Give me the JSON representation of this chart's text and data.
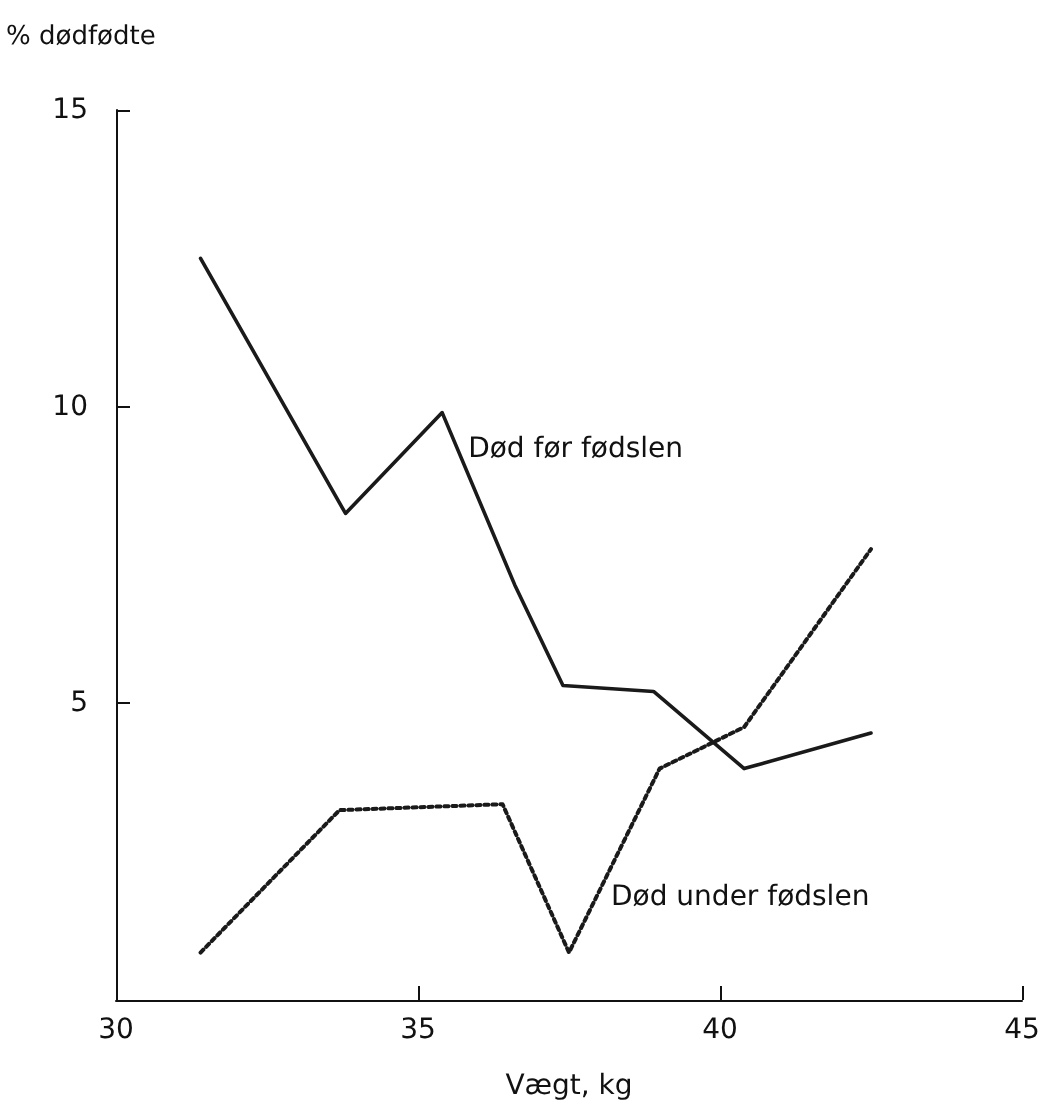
{
  "chart_data": {
    "type": "line",
    "xlabel": "Vægt, kg",
    "ylabel": "% dødfødte",
    "xlim": [
      30,
      45
    ],
    "xticks": [
      30,
      35,
      40,
      45
    ],
    "ylim": [
      0,
      15
    ],
    "yticks": [
      5,
      10,
      15
    ],
    "grid": false,
    "legend": false,
    "marker": "none",
    "series": [
      {
        "name": "Død før fødslen",
        "color": "#1a1a1a",
        "line_style": "solid",
        "x": [
          31.4,
          33.8,
          35.4,
          36.6,
          37.4,
          38.9,
          40.4,
          42.5
        ],
        "values": [
          12.5,
          8.2,
          9.9,
          7.0,
          5.3,
          5.2,
          3.9,
          4.5
        ]
      },
      {
        "name": "Død under fødslen",
        "color": "#1a1a1a",
        "line_style": "dotted",
        "x": [
          31.4,
          33.7,
          36.4,
          37.5,
          39.0,
          40.4,
          42.5
        ],
        "values": [
          0.8,
          3.2,
          3.3,
          0.8,
          3.9,
          4.6,
          7.6
        ]
      }
    ]
  }
}
